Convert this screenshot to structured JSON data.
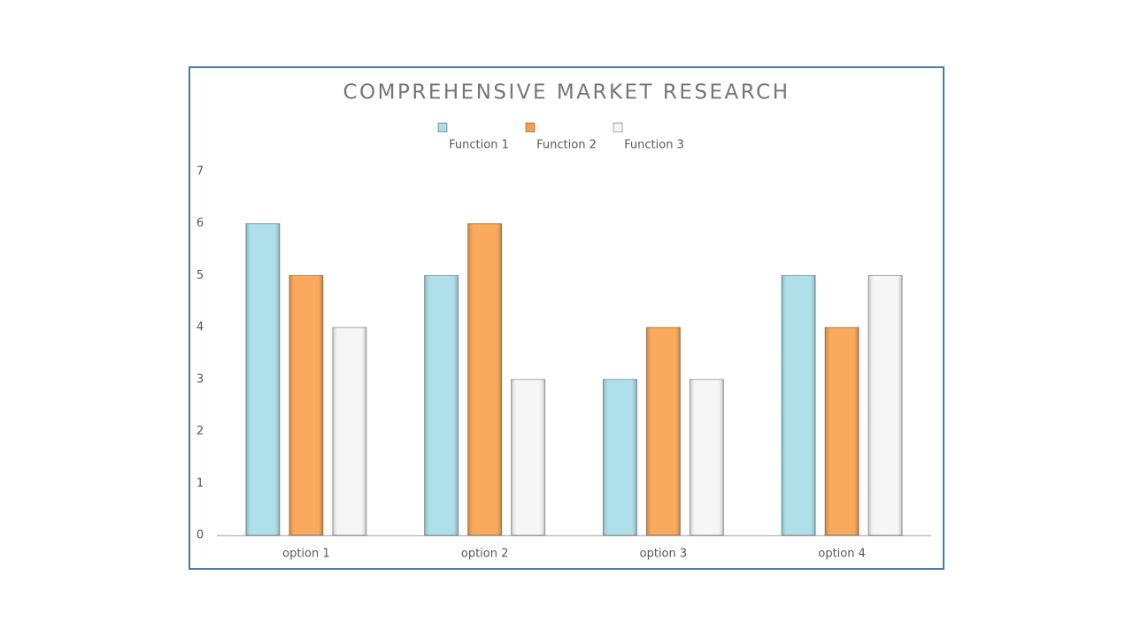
{
  "chart_data": {
    "type": "bar",
    "title": "COMPREHENSIVE MARKET RESEARCH",
    "categories": [
      "option 1",
      "option 2",
      "option 3",
      "option 4"
    ],
    "series": [
      {
        "name": "Function 1",
        "color": "#a6dde8",
        "values": [
          6,
          5,
          3,
          5
        ]
      },
      {
        "name": "Function 2",
        "color": "#f9a04a",
        "values": [
          5,
          6,
          4,
          4
        ]
      },
      {
        "name": "Function 3",
        "color": "#f5f5f5",
        "values": [
          4,
          3,
          3,
          5
        ]
      }
    ],
    "ylim": [
      0,
      7
    ],
    "yticks": [
      0,
      1,
      2,
      3,
      4,
      5,
      6,
      7
    ],
    "grid": false,
    "legend": "top"
  }
}
